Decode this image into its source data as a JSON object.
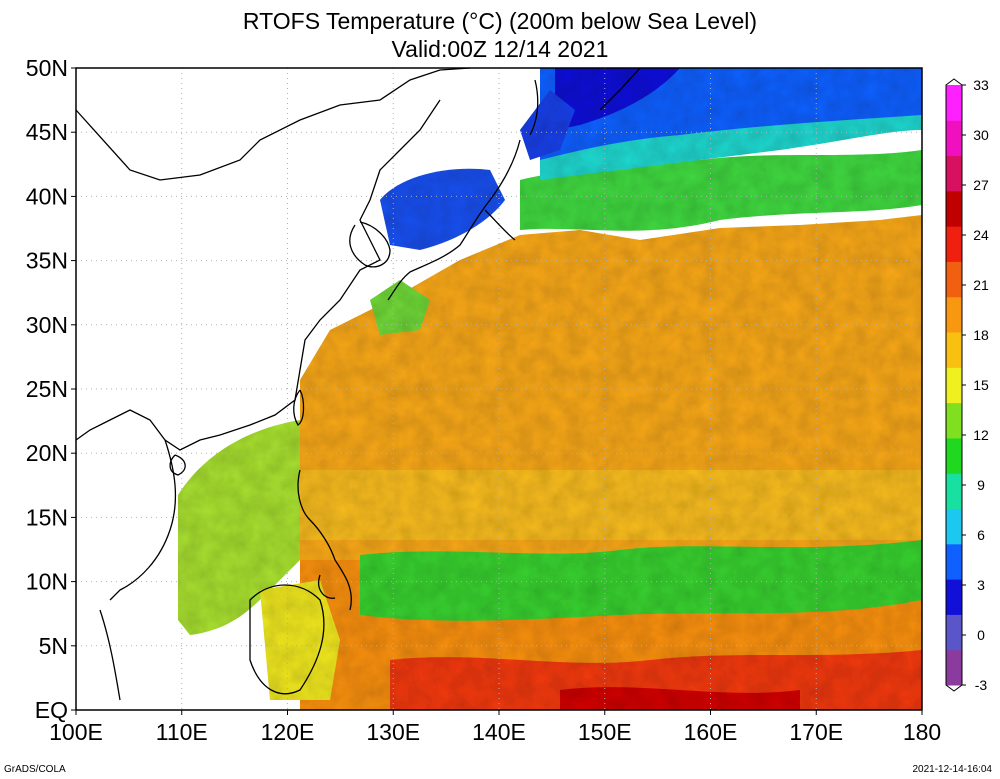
{
  "title": {
    "line1": "RTOFS Temperature (°C) (200m below Sea Level)",
    "line2": "Valid:00Z 12/14 2021"
  },
  "map": {
    "lon_ticks": [
      {
        "value": 100,
        "label": "100E"
      },
      {
        "value": 110,
        "label": "110E"
      },
      {
        "value": 120,
        "label": "120E"
      },
      {
        "value": 130,
        "label": "130E"
      },
      {
        "value": 140,
        "label": "140E"
      },
      {
        "value": 150,
        "label": "150E"
      },
      {
        "value": 160,
        "label": "160E"
      },
      {
        "value": 170,
        "label": "170E"
      },
      {
        "value": 180,
        "label": "180"
      }
    ],
    "lat_ticks": [
      {
        "value": 50,
        "label": "50N"
      },
      {
        "value": 45,
        "label": "45N"
      },
      {
        "value": 40,
        "label": "40N"
      },
      {
        "value": 35,
        "label": "35N"
      },
      {
        "value": 30,
        "label": "30N"
      },
      {
        "value": 25,
        "label": "25N"
      },
      {
        "value": 20,
        "label": "20N"
      },
      {
        "value": 15,
        "label": "15N"
      },
      {
        "value": 10,
        "label": "10N"
      },
      {
        "value": 5,
        "label": "5N"
      },
      {
        "value": 0,
        "label": "EQ"
      }
    ],
    "lon_range": [
      100,
      180
    ],
    "lat_range": [
      0,
      50
    ],
    "grid": true
  },
  "colorbar": {
    "labels": [
      "33",
      "30",
      "27",
      "24",
      "21",
      "18",
      "15",
      "12",
      "9",
      "6",
      "3",
      "0",
      "-3"
    ],
    "colors": [
      "#8a3b9d",
      "#5a55c8",
      "#1010d8",
      "#1060ff",
      "#1cc8f0",
      "#18e0a0",
      "#20d820",
      "#80e020",
      "#f0f020",
      "#f8c010",
      "#f89810",
      "#f06010",
      "#f02010",
      "#c00000",
      "#d81060",
      "#f010c0",
      "#ff20ff"
    ]
  },
  "footer": {
    "credit": "GrADS/COLA",
    "timestamp": "2021-12-14-16:04"
  }
}
